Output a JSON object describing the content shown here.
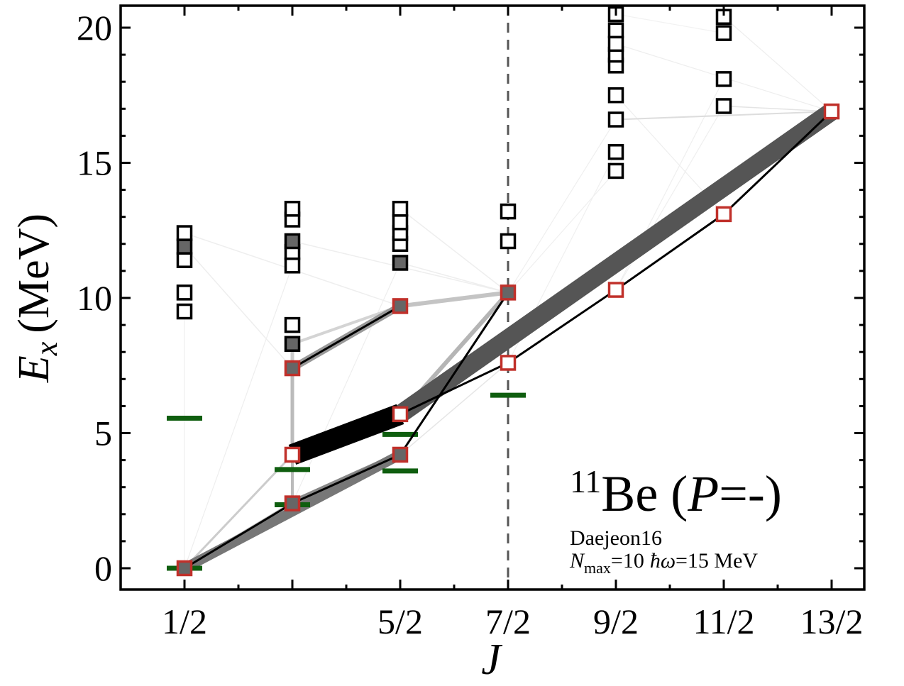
{
  "chart_data": {
    "type": "scatter",
    "xlabel": "J",
    "ylabel_main": "E",
    "ylabel_sub": "x",
    "ylabel_unit": "(MeV)",
    "x_ticks": [
      {
        "j": 0.5,
        "label": "1/2"
      },
      {
        "j": 2.5,
        "label": "5/2"
      },
      {
        "j": 3.5,
        "label": "7/2"
      },
      {
        "j": 4.5,
        "label": "9/2"
      },
      {
        "j": 5.5,
        "label": "11/2"
      },
      {
        "j": 6.5,
        "label": "13/2"
      }
    ],
    "y_ticks": [
      0,
      5,
      10,
      15,
      20
    ],
    "xlim": [
      0.0,
      6.8
    ],
    "ylim": [
      -0.8,
      20.8
    ],
    "dashed_line_x": 3.5,
    "annotation": {
      "nucleus_mass": "11",
      "nucleus_symbol": "Be",
      "parity_open": " (",
      "parity_symbol": "P",
      "parity_value": "=-)",
      "model": "Daejeon16",
      "nmax_symbol": "N",
      "nmax_sub": "max",
      "nmax_value": "=10",
      "hw_symbol": "ħω",
      "hw_value": "=15 MeV"
    },
    "colors": {
      "yrast_outline": "#c0302a",
      "state_outline": "#000000",
      "filled_state": "#666666",
      "experiment": "#0f5e0f",
      "strong_transition": "#000000",
      "medium_transition": "#555555",
      "weak_transition": "#bbbbbb",
      "faint_transition": "#e8e8e8"
    },
    "calculated_states": [
      {
        "j": 0.5,
        "e": 0.0,
        "yrast": true,
        "filled": true
      },
      {
        "j": 0.5,
        "e": 9.5,
        "yrast": false,
        "filled": false
      },
      {
        "j": 0.5,
        "e": 10.2,
        "yrast": false,
        "filled": false
      },
      {
        "j": 0.5,
        "e": 11.4,
        "yrast": false,
        "filled": false
      },
      {
        "j": 0.5,
        "e": 11.9,
        "yrast": false,
        "filled": true
      },
      {
        "j": 0.5,
        "e": 12.4,
        "yrast": false,
        "filled": false
      },
      {
        "j": 1.5,
        "e": 2.4,
        "yrast": true,
        "filled": true
      },
      {
        "j": 1.5,
        "e": 4.2,
        "yrast": true,
        "filled": false
      },
      {
        "j": 1.5,
        "e": 7.4,
        "yrast": true,
        "filled": true
      },
      {
        "j": 1.5,
        "e": 8.3,
        "yrast": false,
        "filled": true
      },
      {
        "j": 1.5,
        "e": 9.0,
        "yrast": false,
        "filled": false
      },
      {
        "j": 1.5,
        "e": 11.2,
        "yrast": false,
        "filled": false
      },
      {
        "j": 1.5,
        "e": 11.7,
        "yrast": false,
        "filled": false
      },
      {
        "j": 1.5,
        "e": 12.1,
        "yrast": false,
        "filled": true
      },
      {
        "j": 1.5,
        "e": 12.9,
        "yrast": false,
        "filled": false
      },
      {
        "j": 1.5,
        "e": 13.3,
        "yrast": false,
        "filled": false
      },
      {
        "j": 2.5,
        "e": 4.2,
        "yrast": true,
        "filled": true
      },
      {
        "j": 2.5,
        "e": 5.7,
        "yrast": true,
        "filled": false
      },
      {
        "j": 2.5,
        "e": 9.7,
        "yrast": true,
        "filled": true
      },
      {
        "j": 2.5,
        "e": 11.3,
        "yrast": false,
        "filled": true
      },
      {
        "j": 2.5,
        "e": 12.0,
        "yrast": false,
        "filled": false
      },
      {
        "j": 2.5,
        "e": 12.4,
        "yrast": false,
        "filled": false
      },
      {
        "j": 2.5,
        "e": 12.8,
        "yrast": false,
        "filled": false
      },
      {
        "j": 2.5,
        "e": 13.3,
        "yrast": false,
        "filled": false
      },
      {
        "j": 3.5,
        "e": 7.6,
        "yrast": true,
        "filled": false
      },
      {
        "j": 3.5,
        "e": 10.2,
        "yrast": true,
        "filled": true
      },
      {
        "j": 3.5,
        "e": 12.1,
        "yrast": false,
        "filled": false
      },
      {
        "j": 3.5,
        "e": 13.2,
        "yrast": false,
        "filled": false
      },
      {
        "j": 4.5,
        "e": 10.3,
        "yrast": true,
        "filled": false
      },
      {
        "j": 4.5,
        "e": 14.7,
        "yrast": false,
        "filled": false
      },
      {
        "j": 4.5,
        "e": 15.4,
        "yrast": false,
        "filled": false
      },
      {
        "j": 4.5,
        "e": 16.6,
        "yrast": false,
        "filled": false
      },
      {
        "j": 4.5,
        "e": 17.5,
        "yrast": false,
        "filled": false
      },
      {
        "j": 4.5,
        "e": 18.6,
        "yrast": false,
        "filled": false
      },
      {
        "j": 4.5,
        "e": 19.0,
        "yrast": false,
        "filled": false
      },
      {
        "j": 4.5,
        "e": 19.4,
        "yrast": false,
        "filled": false
      },
      {
        "j": 4.5,
        "e": 19.9,
        "yrast": false,
        "filled": false
      },
      {
        "j": 4.5,
        "e": 20.5,
        "yrast": false,
        "filled": false
      },
      {
        "j": 5.5,
        "e": 13.1,
        "yrast": true,
        "filled": false
      },
      {
        "j": 5.5,
        "e": 17.1,
        "yrast": false,
        "filled": false
      },
      {
        "j": 5.5,
        "e": 18.1,
        "yrast": false,
        "filled": false
      },
      {
        "j": 5.5,
        "e": 19.8,
        "yrast": false,
        "filled": false
      },
      {
        "j": 5.5,
        "e": 20.4,
        "yrast": false,
        "filled": false
      },
      {
        "j": 6.5,
        "e": 16.9,
        "yrast": true,
        "filled": false
      }
    ],
    "experimental_levels": [
      {
        "j": 0.5,
        "e": 0.0
      },
      {
        "j": 0.5,
        "e": 5.55
      },
      {
        "j": 1.5,
        "e": 2.35
      },
      {
        "j": 1.5,
        "e": 3.65
      },
      {
        "j": 2.5,
        "e": 3.6
      },
      {
        "j": 2.5,
        "e": 4.95
      },
      {
        "j": 3.5,
        "e": 6.4
      }
    ],
    "transitions": [
      {
        "from": [
          1.5,
          4.2
        ],
        "to": [
          2.5,
          5.7
        ],
        "width": 30,
        "color": "#000000"
      },
      {
        "from": [
          2.5,
          5.7
        ],
        "to": [
          6.5,
          16.9
        ],
        "width": 26,
        "color": "#555555"
      },
      {
        "from": [
          0.5,
          0.0
        ],
        "to": [
          2.5,
          4.2
        ],
        "width": 14,
        "color": "#777777"
      },
      {
        "from": [
          1.5,
          2.4
        ],
        "to": [
          2.5,
          4.2
        ],
        "width": 10,
        "color": "#888888"
      },
      {
        "from": [
          1.5,
          7.4
        ],
        "to": [
          2.5,
          9.7
        ],
        "width": 10,
        "color": "#999999"
      },
      {
        "from": [
          2.5,
          9.7
        ],
        "to": [
          3.5,
          10.2
        ],
        "width": 6,
        "color": "#c4c4c4"
      },
      {
        "from": [
          2.5,
          5.7
        ],
        "to": [
          3.5,
          10.2
        ],
        "width": 6,
        "color": "#b5b5b5"
      },
      {
        "from": [
          1.5,
          4.2
        ],
        "to": [
          1.5,
          7.4
        ],
        "width": 5,
        "color": "#bbbbbb"
      },
      {
        "from": [
          0.5,
          0.0
        ],
        "to": [
          1.5,
          2.4
        ],
        "width": 5,
        "color": "#bbbbbb"
      },
      {
        "from": [
          0.5,
          0.0
        ],
        "to": [
          1.5,
          4.2
        ],
        "width": 3,
        "color": "#cccccc"
      },
      {
        "from": [
          1.5,
          7.4
        ],
        "to": [
          1.5,
          8.3
        ],
        "width": 5,
        "color": "#cccccc"
      },
      {
        "from": [
          1.5,
          8.3
        ],
        "to": [
          2.5,
          9.7
        ],
        "width": 4,
        "color": "#d4d4d4"
      },
      {
        "from": [
          1.5,
          2.4
        ],
        "to": [
          1.5,
          4.2
        ],
        "width": 4,
        "color": "#bbbbbb"
      },
      {
        "from": [
          2.5,
          4.2
        ],
        "to": [
          3.5,
          10.2
        ],
        "width": 3,
        "color": "#dddddd"
      },
      {
        "from": [
          0.5,
          11.9
        ],
        "to": [
          1.5,
          7.4
        ],
        "width": 1.5,
        "color": "#eeeeee"
      },
      {
        "from": [
          0.5,
          12.4
        ],
        "to": [
          2.5,
          9.7
        ],
        "width": 1.5,
        "color": "#eeeeee"
      },
      {
        "from": [
          1.5,
          12.1
        ],
        "to": [
          3.5,
          10.2
        ],
        "width": 1.5,
        "color": "#eeeeee"
      },
      {
        "from": [
          2.5,
          11.3
        ],
        "to": [
          3.5,
          10.2
        ],
        "width": 1.5,
        "color": "#eeeeee"
      },
      {
        "from": [
          2.5,
          13.3
        ],
        "to": [
          3.5,
          10.2
        ],
        "width": 1.5,
        "color": "#eeeeee"
      },
      {
        "from": [
          0.5,
          0.0
        ],
        "to": [
          1.5,
          11.2
        ],
        "width": 1.2,
        "color": "#eeeeee"
      },
      {
        "from": [
          0.5,
          0.0
        ],
        "to": [
          0.5,
          9.5
        ],
        "width": 1.2,
        "color": "#eeeeee"
      },
      {
        "from": [
          1.5,
          2.4
        ],
        "to": [
          2.5,
          11.3
        ],
        "width": 1.2,
        "color": "#eeeeee"
      },
      {
        "from": [
          2.5,
          4.2
        ],
        "to": [
          3.5,
          7.6
        ],
        "width": 1.5,
        "color": "#e6e6e6"
      },
      {
        "from": [
          3.5,
          10.2
        ],
        "to": [
          4.5,
          14.7
        ],
        "width": 1.2,
        "color": "#efefef"
      },
      {
        "from": [
          3.5,
          10.2
        ],
        "to": [
          4.5,
          16.6
        ],
        "width": 1.2,
        "color": "#efefef"
      },
      {
        "from": [
          3.5,
          7.6
        ],
        "to": [
          4.5,
          15.4
        ],
        "width": 1.2,
        "color": "#f0f0f0"
      },
      {
        "from": [
          4.5,
          10.3
        ],
        "to": [
          5.5,
          17.1
        ],
        "width": 1.2,
        "color": "#efefef"
      },
      {
        "from": [
          4.5,
          10.3
        ],
        "to": [
          5.5,
          18.1
        ],
        "width": 1.2,
        "color": "#efefef"
      },
      {
        "from": [
          4.5,
          16.6
        ],
        "to": [
          6.5,
          16.9
        ],
        "width": 2,
        "color": "#dddddd"
      },
      {
        "from": [
          4.5,
          17.5
        ],
        "to": [
          5.5,
          13.1
        ],
        "width": 1.2,
        "color": "#eeeeee"
      },
      {
        "from": [
          4.5,
          19.4
        ],
        "to": [
          6.5,
          16.9
        ],
        "width": 1.2,
        "color": "#eeeeee"
      },
      {
        "from": [
          5.5,
          17.1
        ],
        "to": [
          6.5,
          16.9
        ],
        "width": 1.5,
        "color": "#e4e4e4"
      },
      {
        "from": [
          5.5,
          20.4
        ],
        "to": [
          6.5,
          16.9
        ],
        "width": 1.2,
        "color": "#eeeeee"
      },
      {
        "from": [
          4.5,
          20.5
        ],
        "to": [
          5.5,
          19.8
        ],
        "width": 1.2,
        "color": "#f2f2f2"
      }
    ],
    "yrast_paths": [
      [
        [
          0.5,
          0.0
        ],
        [
          1.5,
          2.4
        ],
        [
          2.5,
          4.2
        ],
        [
          3.5,
          10.2
        ]
      ],
      [
        [
          1.5,
          4.2
        ],
        [
          2.5,
          5.7
        ],
        [
          3.5,
          7.6
        ],
        [
          4.5,
          10.3
        ],
        [
          5.5,
          13.1
        ],
        [
          6.5,
          16.9
        ]
      ],
      [
        [
          1.5,
          7.4
        ],
        [
          2.5,
          9.7
        ]
      ]
    ]
  }
}
